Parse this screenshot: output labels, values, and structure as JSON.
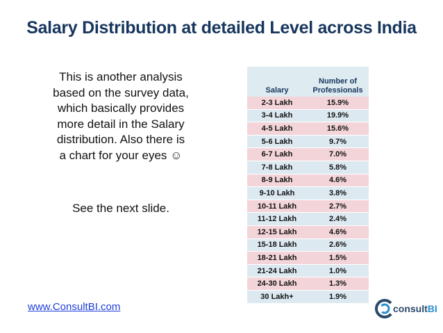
{
  "slide": {
    "title": "Salary Distribution at detailed Level across India",
    "body_lines": [
      "This is another analysis",
      "based on the survey data,",
      "which basically provides",
      "more detail in the Salary",
      "distribution. Also there is",
      "a chart for your eyes ☺"
    ],
    "next": "See the next slide.",
    "footer_link": "www.ConsultBI.com",
    "logo": {
      "part1": "consult",
      "part2": "BI"
    }
  },
  "table": {
    "headers": [
      "Salary",
      "Number of Professionals"
    ],
    "rows": [
      [
        "2-3 Lakh",
        "15.9%"
      ],
      [
        "3-4 Lakh",
        "19.9%"
      ],
      [
        "4-5 Lakh",
        "15.6%"
      ],
      [
        "5-6 Lakh",
        "9.7%"
      ],
      [
        "6-7 Lakh",
        "7.0%"
      ],
      [
        "7-8 Lakh",
        "5.8%"
      ],
      [
        "8-9 Lakh",
        "4.6%"
      ],
      [
        "9-10 Lakh",
        "3.8%"
      ],
      [
        "10-11 Lakh",
        "2.7%"
      ],
      [
        "11-12 Lakh",
        "2.4%"
      ],
      [
        "12-15 Lakh",
        "4.6%"
      ],
      [
        "15-18 Lakh",
        "2.6%"
      ],
      [
        "18-21 Lakh",
        "1.5%"
      ],
      [
        "21-24 Lakh",
        "1.0%"
      ],
      [
        "24-30 Lakh",
        "1.3%"
      ],
      [
        "30 Lakh+",
        "1.9%"
      ]
    ],
    "colors": {
      "odd_row": "#f3d4d9",
      "even_row": "#dce9f1",
      "header": "#deebf1"
    }
  }
}
